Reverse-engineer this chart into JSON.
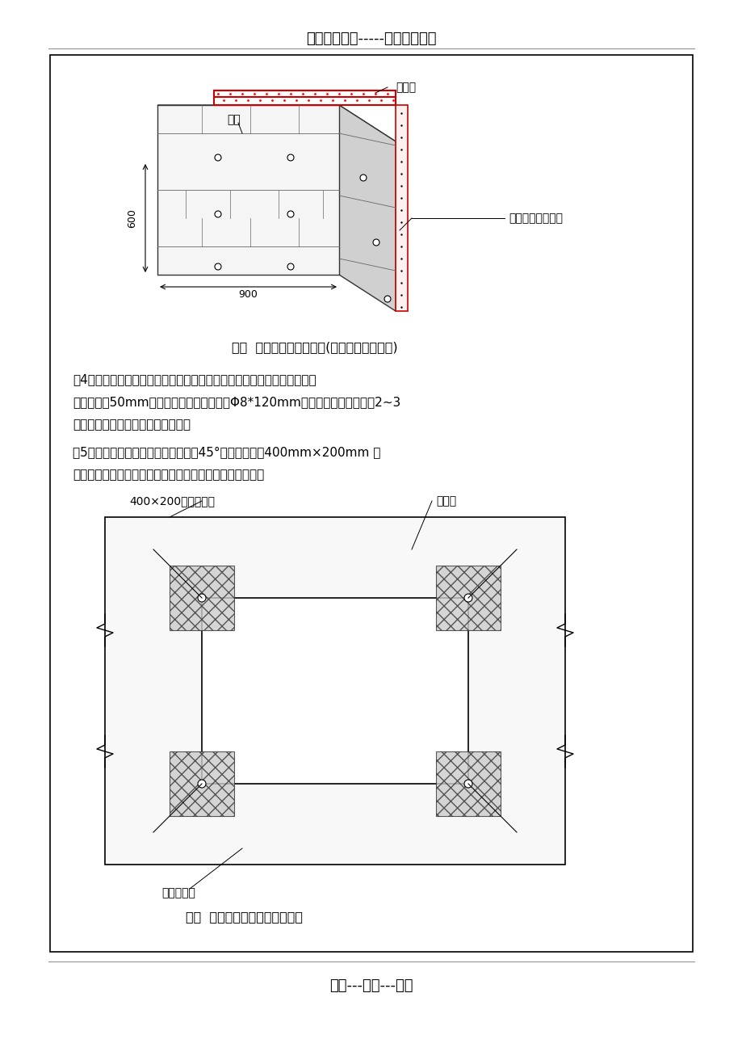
{
  "title_top": "精选优质文档-----倾情为你奉上",
  "title_bottom": "专心---专注---专业",
  "fig3_caption": "图三  阳角聚苯交错示意图(阴角构造与此雷同)",
  "fig6_caption": "图六  门窗洞口网格布加强示意图",
  "para4_text": "（4）安装工程塑料膨胀螺栓，在贴好的聚苯板用冲击钻钻孔，孔洞深入墙\n基面不小于50mm，钉入工程塑料膨胀螺栓Φ8*120mm。数量为每平方米宜设2~3\n个，但每一单块聚苯板不少于一个。",
  "para5_text": "（5）贴网格布，门、窗洞口四角，沿45°方向各加一层400mm×200mm 网\n格布进行加强，加强布位于大面网格布下面。如图六所示。",
  "bg_color": "#ffffff",
  "box_color": "#000000",
  "text_color": "#000000",
  "label_qujubai": "聚苯板",
  "label_qiangjing": "墙体",
  "label_luoshuan": "工程塑料膨胀螺栓",
  "label_jiaqiang": "400×200加强网格布",
  "label_jucubai2": "聚苯板",
  "label_chuangkou": "门、窗洞口",
  "dim_600": "600",
  "dim_900": "900"
}
